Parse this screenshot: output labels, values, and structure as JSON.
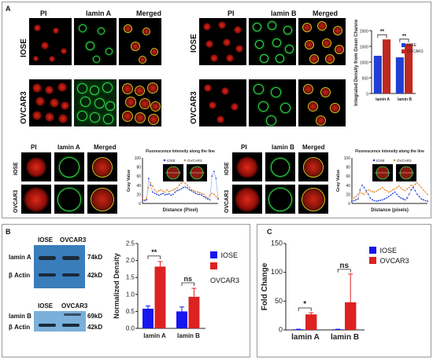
{
  "panel_a": {
    "label": "A",
    "lamin_a_grid": {
      "col_headers": [
        "PI",
        "lamin A",
        "Merged"
      ],
      "row_labels": [
        "IOSE",
        "OVCAR3"
      ]
    },
    "lamin_b_grid": {
      "col_headers": [
        "PI",
        "lamin B",
        "Merged"
      ],
      "row_labels": [
        "IOSE",
        "OVCAR3"
      ]
    },
    "lamin_a_profile": {
      "col_headers": [
        "PI",
        "lamin A",
        "Merged"
      ],
      "row_labels": [
        "IOSE",
        "OVCAR3"
      ]
    },
    "lamin_b_profile": {
      "col_headers": [
        "PI",
        "lamin B",
        "Merged"
      ],
      "row_labels": [
        "IOSE",
        "OVCAR3"
      ]
    },
    "colors": {
      "pi": "#d8261a",
      "lamin": "#33e04a",
      "iose": "#1f3fd6",
      "ovcar3": "#c0291f"
    }
  },
  "panel_b": {
    "label": "B",
    "blot_a": {
      "headers": [
        "IOSE",
        "OVCAR3"
      ],
      "rows": [
        "lamin A",
        "β Actin"
      ],
      "sizes": [
        "74kD",
        "42kD"
      ]
    },
    "blot_b": {
      "headers": [
        "IOSE",
        "OVCAR3"
      ],
      "rows": [
        "lamin B",
        "β Actin"
      ],
      "sizes": [
        "69kD",
        "42kD"
      ]
    },
    "sig": [
      "**",
      "ns"
    ],
    "legend": [
      "IOSE",
      "OVCAR3"
    ]
  },
  "panel_c": {
    "label": "C",
    "sig": [
      "*",
      "ns"
    ],
    "legend": [
      "IOSE",
      "OVCAR3"
    ]
  },
  "chart_data": [
    {
      "id": "a_density",
      "type": "bar",
      "ylabel": "Integrated Density from Green Channel",
      "categories": [
        "lamin A",
        "lamin B"
      ],
      "series": [
        {
          "name": "IOSE",
          "values": [
            1200,
            1150
          ],
          "color": "#1f3fd6"
        },
        {
          "name": "OVCAR3",
          "values": [
            1720,
            1580
          ],
          "color": "#c0291f"
        }
      ],
      "ylim": [
        0,
        2000
      ],
      "yticks": [
        0,
        500,
        1000,
        1500,
        2000
      ],
      "significance": [
        "**",
        "**"
      ]
    },
    {
      "id": "a_profile_lamin_a",
      "type": "line",
      "title": "Fluorescence intensity along the line",
      "xlabel": "Distance (Pixel)",
      "ylabel": "Gray Value",
      "ylim": [
        0,
        100
      ],
      "yticks": [
        0,
        20,
        40,
        60,
        80,
        100
      ],
      "series": [
        {
          "name": "IOSE",
          "values": [
            8,
            6,
            8,
            55,
            40,
            25,
            22,
            20,
            18,
            20,
            22,
            19,
            20,
            21,
            18,
            20,
            25,
            28,
            30,
            32,
            35,
            36,
            34,
            30,
            28,
            25,
            22,
            20,
            20,
            18,
            15,
            12,
            10,
            8,
            60,
            70,
            55,
            10
          ],
          "color": "#1f3fd6"
        },
        {
          "name": "OVCAR3",
          "values": [
            10,
            8,
            12,
            35,
            45,
            38,
            30,
            25,
            28,
            30,
            27,
            25,
            30,
            26,
            28,
            30,
            32,
            34,
            40,
            45,
            48,
            44,
            40,
            35,
            30,
            28,
            26,
            25,
            24,
            22,
            20,
            15,
            12,
            18,
            22,
            20,
            15,
            12
          ],
          "color": "#e0822a"
        }
      ]
    },
    {
      "id": "a_profile_lamin_b",
      "type": "line",
      "title": "Fluorescence intensity along the line",
      "xlabel": "Distance (pixels)",
      "ylabel": "Gray Value",
      "ylim": [
        0,
        100
      ],
      "yticks": [
        0,
        20,
        40,
        60,
        80,
        100
      ],
      "series": [
        {
          "name": "IOSE",
          "values": [
            5,
            6,
            8,
            10,
            30,
            40,
            35,
            28,
            20,
            12,
            8,
            6,
            5,
            6,
            7,
            8,
            10,
            12,
            15,
            18,
            22,
            25,
            20,
            15,
            12,
            10,
            8,
            12,
            20,
            30,
            35,
            28,
            20,
            15,
            10,
            8,
            6,
            5
          ],
          "color": "#1f3fd6"
        },
        {
          "name": "OVCAR3",
          "values": [
            10,
            12,
            15,
            20,
            25,
            22,
            20,
            25,
            30,
            28,
            26,
            25,
            27,
            30,
            32,
            35,
            30,
            28,
            25,
            27,
            30,
            32,
            35,
            38,
            34,
            30,
            28,
            32,
            35,
            40,
            38,
            42,
            45,
            40,
            35,
            30,
            25,
            20
          ],
          "color": "#e0822a"
        }
      ]
    },
    {
      "id": "b_density",
      "type": "bar",
      "ylabel": "Normalized Density",
      "categories": [
        "lamin A",
        "lamin B"
      ],
      "series": [
        {
          "name": "IOSE",
          "values": [
            0.58,
            0.5
          ],
          "errors": [
            0.08,
            0.13
          ],
          "color": "#1616f0"
        },
        {
          "name": "OVCAR3",
          "values": [
            1.82,
            0.93
          ],
          "errors": [
            0.15,
            0.25
          ],
          "color": "#dd2222"
        }
      ],
      "ylim": [
        0,
        2.5
      ],
      "yticks": [
        0.0,
        0.5,
        1.0,
        1.5,
        2.0,
        2.5
      ],
      "significance": [
        "**",
        "ns"
      ]
    },
    {
      "id": "c_fold",
      "type": "bar",
      "ylabel": "Fold Change",
      "categories": [
        "lamin A",
        "lamin B"
      ],
      "series": [
        {
          "name": "IOSE",
          "values": [
            1,
            1
          ],
          "errors": [
            0.3,
            0.3
          ],
          "color": "#1616f0"
        },
        {
          "name": "OVCAR3",
          "values": [
            27,
            48
          ],
          "errors": [
            3,
            49
          ],
          "color": "#dd2222"
        }
      ],
      "ylim": [
        0,
        150
      ],
      "yticks": [
        0,
        50,
        100,
        150
      ],
      "significance": [
        "*",
        "ns"
      ]
    }
  ]
}
